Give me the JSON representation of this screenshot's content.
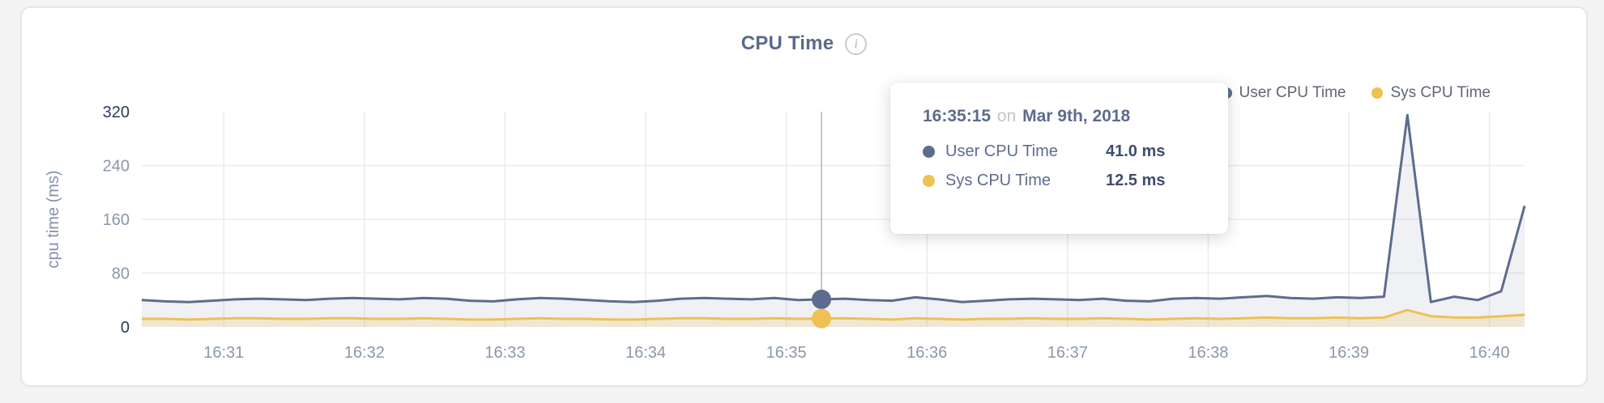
{
  "header": {
    "title": "CPU Time",
    "info_icon": "i"
  },
  "legend": {
    "items": [
      {
        "label": "User CPU Time",
        "color": "#5d6c8e"
      },
      {
        "label": "Sys CPU Time",
        "color": "#eec152"
      }
    ]
  },
  "tooltip": {
    "time": "16:35:15",
    "on_word": "on",
    "date": "Mar 9th, 2018",
    "rows": [
      {
        "label": "User CPU Time",
        "value": "41.0 ms",
        "color": "#5d6c8e"
      },
      {
        "label": "Sys CPU Time",
        "value": "12.5 ms",
        "color": "#eec152"
      }
    ]
  },
  "chart_data": {
    "type": "area",
    "title": "CPU Time",
    "xlabel": "",
    "ylabel": "cpu time (ms)",
    "ylim": [
      0,
      320
    ],
    "yticks": [
      0,
      80,
      160,
      240,
      320
    ],
    "xticks": [
      "16:31",
      "16:32",
      "16:33",
      "16:34",
      "16:35",
      "16:36",
      "16:37",
      "16:38",
      "16:39",
      "16:40"
    ],
    "x_time_range": [
      "16:30:25",
      "16:40:15"
    ],
    "interval_seconds": 10,
    "grid": true,
    "legend_position": "top-right",
    "colors": {
      "grid": "#ececec",
      "hover_line": "#c6c6c6"
    },
    "series": [
      {
        "name": "User CPU Time",
        "color": "#5d6c8e",
        "fill": "rgba(99,113,144,0.10)",
        "values": [
          40,
          38,
          37,
          39,
          41,
          42,
          41,
          40,
          42,
          43,
          42,
          41,
          43,
          42,
          39,
          38,
          41,
          43,
          42,
          40,
          38,
          37,
          39,
          42,
          43,
          42,
          41,
          43,
          40,
          41,
          42,
          40,
          39,
          44,
          41,
          37,
          39,
          41,
          42,
          41,
          40,
          42,
          39,
          38,
          42,
          43,
          42,
          44,
          46,
          43,
          42,
          44,
          43,
          45,
          315,
          37,
          45,
          40,
          53,
          180
        ]
      },
      {
        "name": "Sys CPU Time",
        "color": "#eec152",
        "fill": "rgba(238,193,82,0.20)",
        "values": [
          12,
          12,
          11,
          12,
          13,
          13,
          12,
          12,
          13,
          13,
          12,
          12,
          13,
          12,
          11,
          11,
          12,
          13,
          12,
          12,
          11,
          11,
          12,
          13,
          13,
          12,
          12,
          13,
          12,
          12.5,
          13,
          12,
          11,
          13,
          12,
          11,
          12,
          12,
          13,
          12,
          12,
          13,
          12,
          11,
          12,
          13,
          12,
          13,
          14,
          13,
          13,
          14,
          13,
          14,
          25,
          16,
          14,
          14,
          16,
          18
        ]
      }
    ],
    "hover": {
      "index": 29,
      "time": "16:35:15",
      "values": [
        41.0,
        12.5
      ]
    }
  }
}
